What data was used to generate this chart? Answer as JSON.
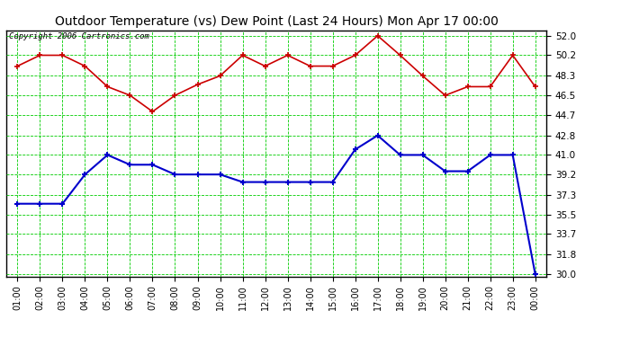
{
  "title": "Outdoor Temperature (vs) Dew Point (Last 24 Hours) Mon Apr 17 00:00",
  "copyright": "Copyright 2006 Cartronics.com",
  "x_labels": [
    "01:00",
    "02:00",
    "03:00",
    "04:00",
    "05:00",
    "06:00",
    "07:00",
    "08:00",
    "09:00",
    "10:00",
    "11:00",
    "12:00",
    "13:00",
    "14:00",
    "15:00",
    "16:00",
    "17:00",
    "18:00",
    "19:00",
    "20:00",
    "21:00",
    "22:00",
    "23:00",
    "00:00"
  ],
  "temp_data": [
    49.2,
    50.2,
    50.2,
    49.2,
    47.3,
    46.5,
    45.0,
    46.5,
    47.5,
    48.3,
    50.2,
    49.2,
    50.2,
    49.2,
    49.2,
    50.2,
    52.0,
    50.2,
    48.3,
    46.5,
    47.3,
    47.3,
    50.2,
    47.3
  ],
  "dew_data": [
    36.5,
    36.5,
    36.5,
    39.2,
    41.0,
    40.1,
    40.1,
    39.2,
    39.2,
    39.2,
    38.5,
    38.5,
    38.5,
    38.5,
    38.5,
    41.5,
    42.8,
    41.0,
    41.0,
    39.5,
    39.5,
    41.0,
    41.0,
    30.0
  ],
  "temp_color": "#cc0000",
  "dew_color": "#0000cc",
  "bg_color": "#ffffff",
  "plot_bg": "#ffffff",
  "grid_color": "#00cc00",
  "ylim_min": 30.0,
  "ylim_max": 52.0,
  "yticks": [
    30.0,
    31.8,
    33.7,
    35.5,
    37.3,
    39.2,
    41.0,
    42.8,
    44.7,
    46.5,
    48.3,
    50.2,
    52.0
  ],
  "title_fontsize": 10,
  "copyright_fontsize": 6.5
}
